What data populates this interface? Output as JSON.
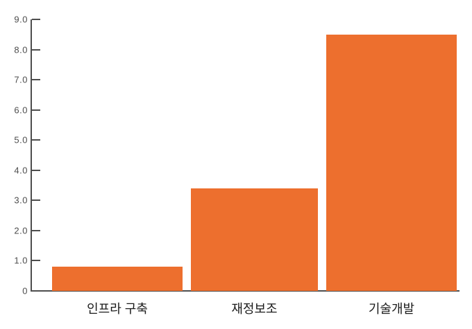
{
  "chart_data": {
    "type": "bar",
    "title": "",
    "xlabel": "",
    "ylabel": "",
    "categories": [
      "인프라 구축",
      "재정보조",
      "기술개발"
    ],
    "values": [
      0.8,
      3.4,
      8.5
    ],
    "ylim": [
      0,
      9
    ],
    "ytick_step": 1,
    "ytick_labels": [
      "0",
      "1.0",
      "2.0",
      "3.0",
      "4.0",
      "5.0",
      "6.0",
      "7.0",
      "8.0",
      "9.0"
    ],
    "grid": false,
    "legend": null,
    "colors": {
      "bar": "#ED6F2E",
      "axis": "#4D4D4D",
      "tick_label": "#4D4D4D",
      "category_label": "#1A1A1A",
      "background": "#FFFFFF"
    }
  }
}
